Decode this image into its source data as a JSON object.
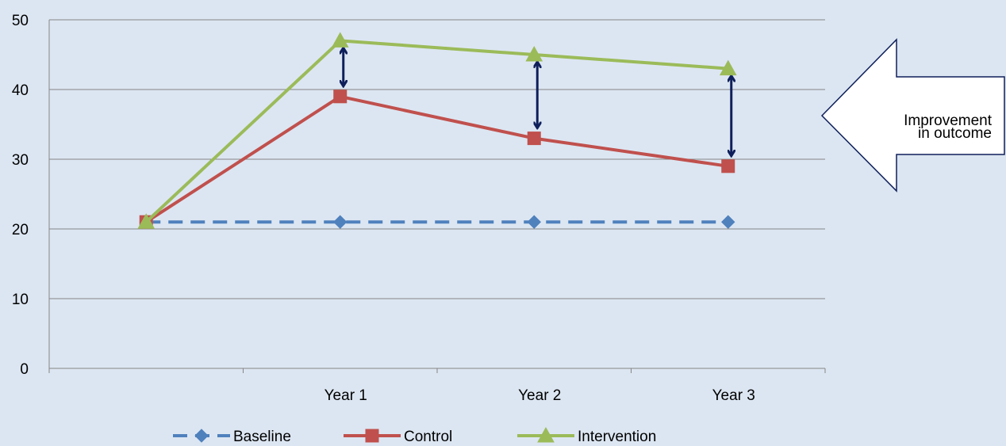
{
  "chart_data": {
    "type": "line",
    "categories": [
      "",
      "Year 1",
      "Year 2",
      "Year 3"
    ],
    "ylim": [
      0,
      50
    ],
    "yticks": [
      0,
      10,
      20,
      30,
      40,
      50
    ],
    "grid": true,
    "legend_position": "bottom",
    "series": [
      {
        "name": "Baseline",
        "values": [
          21,
          21,
          21,
          21
        ],
        "color": "#4f81bd",
        "marker": "diamond",
        "dash": true
      },
      {
        "name": "Control",
        "values": [
          21,
          39,
          33,
          29
        ],
        "color": "#c0504d",
        "marker": "square",
        "dash": false
      },
      {
        "name": "Intervention",
        "values": [
          21,
          47,
          45,
          43
        ],
        "color": "#9bbb59",
        "marker": "triangle",
        "dash": false
      }
    ],
    "gap_arrows": {
      "categories": [
        "Year 1",
        "Year 2",
        "Year 3"
      ],
      "color": "#0e1f5b"
    },
    "callout": {
      "lines": [
        "Improvement",
        "in outcome"
      ]
    }
  },
  "colors": {
    "background": "#dce6f2",
    "gridline": "#868686",
    "arrow": "#0e1f5b"
  }
}
